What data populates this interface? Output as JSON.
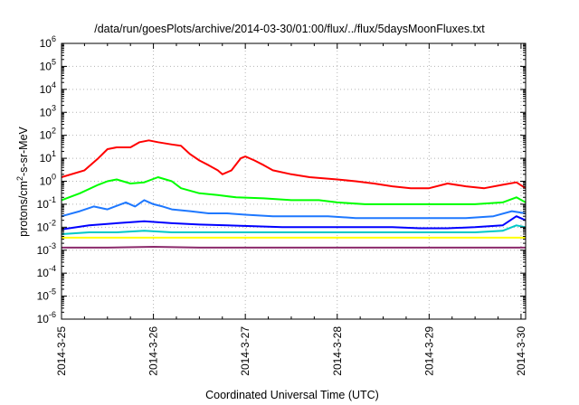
{
  "chart_data": {
    "type": "line",
    "title": "/data/run/goesPlots/archive/2014-03-30/01:00/flux/../flux/5daysMoonFluxes.txt",
    "xlabel": "Coordinated Universal Time (UTC)",
    "ylabel_parts": [
      "protons/cm",
      "2",
      "-s-sr-MeV"
    ],
    "yscale": "log",
    "ylim": [
      1e-06,
      1000000.0
    ],
    "xlim_days": [
      0,
      5.05
    ],
    "x_tick_labels": [
      "2014-3-25",
      "2014-3-26",
      "2014-3-27",
      "2014-3-28",
      "2014-3-29",
      "2014-3-30"
    ],
    "y_tick_exponents": [
      "-6",
      "-5",
      "-4",
      "-3",
      "-2",
      "-1",
      "0",
      "1",
      "2",
      "3",
      "4",
      "5",
      "6"
    ],
    "y_tick_base": "10",
    "grid": true,
    "series": [
      {
        "color": "#ff0000",
        "points": [
          [
            0,
            1.5
          ],
          [
            0.25,
            3
          ],
          [
            0.4,
            10
          ],
          [
            0.5,
            25
          ],
          [
            0.6,
            30
          ],
          [
            0.75,
            30
          ],
          [
            0.85,
            50
          ],
          [
            0.95,
            60
          ],
          [
            1.05,
            50
          ],
          [
            1.2,
            40
          ],
          [
            1.3,
            35
          ],
          [
            1.4,
            15
          ],
          [
            1.5,
            8
          ],
          [
            1.6,
            5
          ],
          [
            1.7,
            3
          ],
          [
            1.75,
            2
          ],
          [
            1.85,
            3
          ],
          [
            1.95,
            10
          ],
          [
            2.0,
            12
          ],
          [
            2.1,
            8
          ],
          [
            2.2,
            5
          ],
          [
            2.3,
            3
          ],
          [
            2.5,
            2
          ],
          [
            2.7,
            1.5
          ],
          [
            3.0,
            1.2
          ],
          [
            3.2,
            1.0
          ],
          [
            3.4,
            0.8
          ],
          [
            3.6,
            0.6
          ],
          [
            3.8,
            0.5
          ],
          [
            4.0,
            0.5
          ],
          [
            4.2,
            0.8
          ],
          [
            4.4,
            0.6
          ],
          [
            4.6,
            0.5
          ],
          [
            4.8,
            0.7
          ],
          [
            4.95,
            0.9
          ],
          [
            5.05,
            0.5
          ]
        ]
      },
      {
        "color": "#00ff00",
        "points": [
          [
            0,
            0.15
          ],
          [
            0.2,
            0.3
          ],
          [
            0.4,
            0.7
          ],
          [
            0.5,
            1.0
          ],
          [
            0.6,
            1.2
          ],
          [
            0.75,
            0.8
          ],
          [
            0.9,
            0.9
          ],
          [
            1.05,
            1.5
          ],
          [
            1.2,
            1.0
          ],
          [
            1.3,
            0.5
          ],
          [
            1.5,
            0.3
          ],
          [
            1.7,
            0.25
          ],
          [
            1.9,
            0.2
          ],
          [
            2.2,
            0.18
          ],
          [
            2.5,
            0.15
          ],
          [
            2.8,
            0.15
          ],
          [
            3.0,
            0.12
          ],
          [
            3.3,
            0.1
          ],
          [
            3.6,
            0.1
          ],
          [
            3.9,
            0.1
          ],
          [
            4.2,
            0.1
          ],
          [
            4.5,
            0.1
          ],
          [
            4.8,
            0.12
          ],
          [
            4.95,
            0.2
          ],
          [
            5.05,
            0.12
          ]
        ]
      },
      {
        "color": "#1e78ff",
        "points": [
          [
            0,
            0.03
          ],
          [
            0.2,
            0.05
          ],
          [
            0.35,
            0.08
          ],
          [
            0.5,
            0.06
          ],
          [
            0.7,
            0.12
          ],
          [
            0.8,
            0.08
          ],
          [
            0.9,
            0.15
          ],
          [
            1.0,
            0.1
          ],
          [
            1.1,
            0.08
          ],
          [
            1.2,
            0.06
          ],
          [
            1.4,
            0.05
          ],
          [
            1.6,
            0.04
          ],
          [
            1.8,
            0.04
          ],
          [
            2.0,
            0.035
          ],
          [
            2.3,
            0.03
          ],
          [
            2.6,
            0.03
          ],
          [
            2.9,
            0.03
          ],
          [
            3.2,
            0.025
          ],
          [
            3.5,
            0.025
          ],
          [
            3.8,
            0.025
          ],
          [
            4.1,
            0.025
          ],
          [
            4.4,
            0.025
          ],
          [
            4.7,
            0.03
          ],
          [
            4.9,
            0.05
          ],
          [
            5.05,
            0.04
          ]
        ]
      },
      {
        "color": "#0000ff",
        "points": [
          [
            0,
            0.008
          ],
          [
            0.3,
            0.012
          ],
          [
            0.6,
            0.015
          ],
          [
            0.9,
            0.018
          ],
          [
            1.2,
            0.015
          ],
          [
            1.5,
            0.013
          ],
          [
            1.8,
            0.012
          ],
          [
            2.1,
            0.011
          ],
          [
            2.4,
            0.01
          ],
          [
            2.7,
            0.01
          ],
          [
            3.0,
            0.01
          ],
          [
            3.3,
            0.01
          ],
          [
            3.6,
            0.01
          ],
          [
            3.9,
            0.009
          ],
          [
            4.2,
            0.009
          ],
          [
            4.5,
            0.01
          ],
          [
            4.8,
            0.012
          ],
          [
            4.95,
            0.03
          ],
          [
            5.05,
            0.02
          ]
        ]
      },
      {
        "color": "#00c8c8",
        "points": [
          [
            0,
            0.005
          ],
          [
            0.3,
            0.006
          ],
          [
            0.6,
            0.006
          ],
          [
            0.9,
            0.007
          ],
          [
            1.2,
            0.006
          ],
          [
            1.5,
            0.006
          ],
          [
            1.8,
            0.006
          ],
          [
            2.1,
            0.006
          ],
          [
            2.4,
            0.006
          ],
          [
            2.7,
            0.006
          ],
          [
            3.0,
            0.006
          ],
          [
            3.3,
            0.006
          ],
          [
            3.6,
            0.006
          ],
          [
            3.9,
            0.006
          ],
          [
            4.2,
            0.006
          ],
          [
            4.5,
            0.006
          ],
          [
            4.8,
            0.007
          ],
          [
            4.95,
            0.012
          ],
          [
            5.05,
            0.01
          ]
        ]
      },
      {
        "color": "#ffff00",
        "points": [
          [
            0,
            0.0035
          ],
          [
            0.5,
            0.0035
          ],
          [
            1.0,
            0.0035
          ],
          [
            1.5,
            0.0035
          ],
          [
            2.0,
            0.0035
          ],
          [
            2.5,
            0.0035
          ],
          [
            3.0,
            0.0035
          ],
          [
            3.5,
            0.0035
          ],
          [
            4.0,
            0.0035
          ],
          [
            4.5,
            0.0035
          ],
          [
            5.05,
            0.0035
          ]
        ]
      },
      {
        "color": "#8b2a6b",
        "points": [
          [
            0,
            0.0013
          ],
          [
            0.5,
            0.0013
          ],
          [
            1.0,
            0.0014
          ],
          [
            1.5,
            0.0013
          ],
          [
            2.0,
            0.0013
          ],
          [
            2.5,
            0.0013
          ],
          [
            3.0,
            0.0013
          ],
          [
            3.5,
            0.0013
          ],
          [
            4.0,
            0.0013
          ],
          [
            4.5,
            0.0013
          ],
          [
            5.05,
            0.0013
          ]
        ]
      }
    ]
  }
}
